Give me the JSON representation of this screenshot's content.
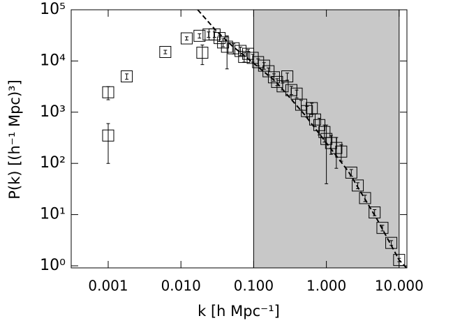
{
  "chart_data": {
    "type": "scatter",
    "xlabel": "k [h Mpc⁻¹]",
    "ylabel": "P(k) [(h⁻¹ Mpc)³]",
    "xlog": true,
    "ylog": true,
    "xlim": [
      0.00031,
      12.8
    ],
    "ylim": [
      0.91,
      100000
    ],
    "xticks": [
      0.001,
      {
        "value": 0.01,
        "label": "0.010"
      },
      {
        "value": 0.1,
        "label": "0.100"
      },
      {
        "value": 1,
        "label": "1.000"
      },
      {
        "value": 10,
        "label": "10.000"
      }
    ],
    "yticks": [
      {
        "value": 1,
        "label": "10⁰"
      },
      {
        "value": 10,
        "label": "10¹"
      },
      {
        "value": 100,
        "label": "10²"
      },
      {
        "value": 1000,
        "label": "10³"
      },
      {
        "value": 10000,
        "label": "10⁴"
      },
      {
        "value": 100000,
        "label": "10⁵"
      }
    ],
    "shaded_xrange": [
      0.1,
      10
    ],
    "shade_color": "#c8c8c8",
    "series": [
      {
        "color": "#000000",
        "x": [
          0.001,
          0.001,
          0.0018,
          0.0061,
          0.012,
          0.018,
          0.024,
          0.0197,
          0.029,
          0.034,
          0.038,
          0.043,
          0.053,
          0.066,
          0.074,
          0.084,
          0.097,
          0.115,
          0.139,
          0.16,
          0.19,
          0.21,
          0.25,
          0.29,
          0.33,
          0.39,
          0.45,
          0.54,
          0.63,
          0.7,
          0.8,
          0.94,
          1.0,
          1.16,
          1.37,
          1.6,
          2.2,
          2.7,
          3.4,
          4.6,
          5.9,
          7.8,
          10
        ],
        "values": [
          350,
          2450,
          5000,
          15000,
          27600,
          31000,
          33000,
          14500,
          33000,
          28000,
          23000,
          19000,
          17700,
          15700,
          12000,
          13800,
          11500,
          9500,
          8100,
          6300,
          4800,
          3900,
          3200,
          5000,
          2700,
          2300,
          1400,
          1050,
          1200,
          720,
          560,
          410,
          300,
          250,
          200,
          170,
          66,
          37,
          21,
          11,
          5.5,
          2.8,
          1.3
        ],
        "errors": [
          250,
          700,
          600,
          1200,
          2000,
          3000,
          4000,
          6000,
          4000,
          4000,
          4000,
          12000,
          4000,
          3000,
          2500,
          3000,
          2000,
          1500,
          1200,
          1000,
          800,
          600,
          500,
          800,
          500,
          400,
          300,
          250,
          300,
          200,
          200,
          150,
          260,
          100,
          120,
          60,
          10,
          5,
          3,
          1.5,
          0.7,
          0.3,
          0.1
        ]
      }
    ],
    "model": {
      "color": "#000000",
      "x": [
        0.017,
        0.03,
        0.05,
        0.1,
        0.2,
        0.5,
        1,
        2,
        5,
        10,
        12.5
      ],
      "values": [
        100000,
        40000,
        20000,
        9000,
        4000,
        900,
        250,
        70,
        8,
        1.3,
        0.92
      ]
    }
  }
}
